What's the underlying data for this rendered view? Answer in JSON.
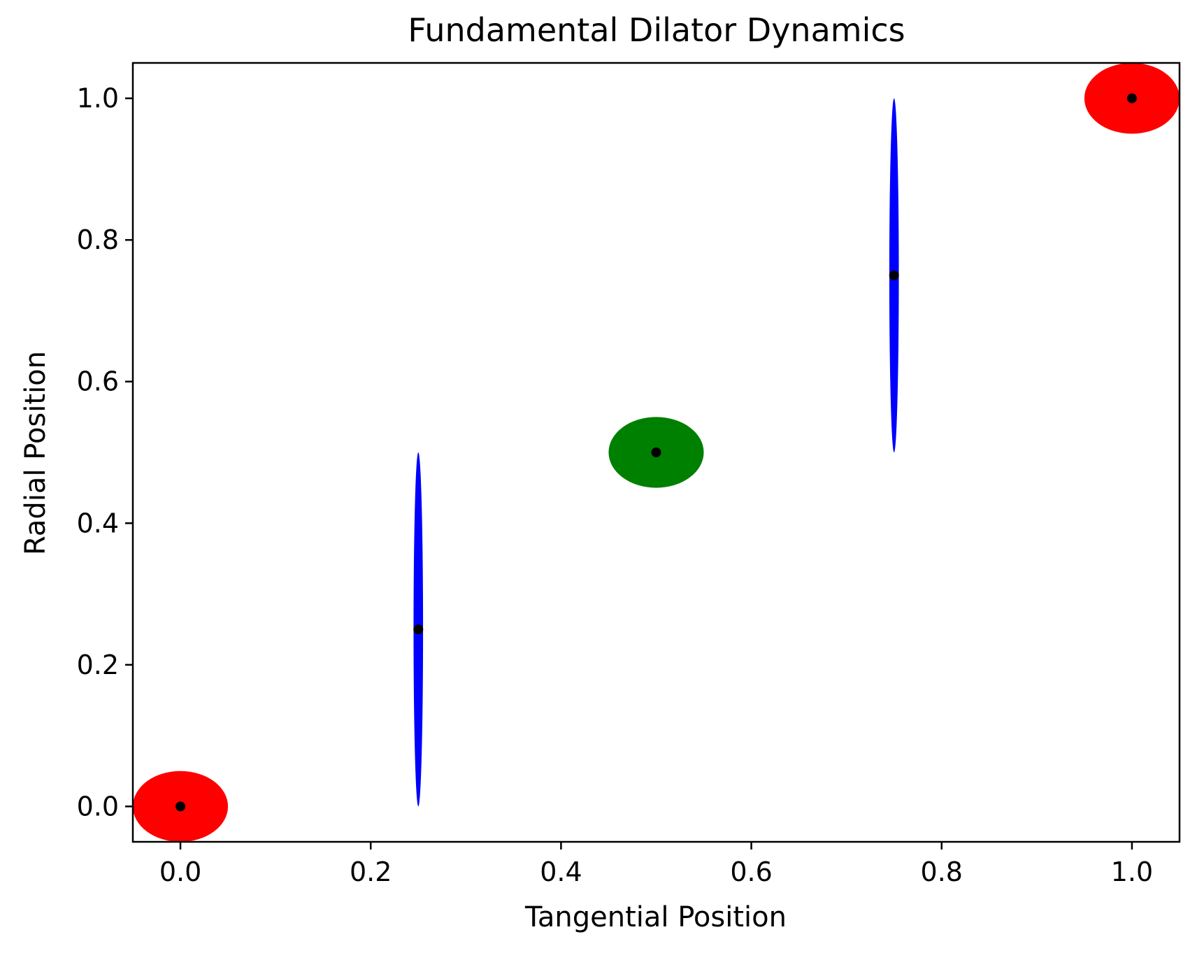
{
  "chart_data": {
    "type": "scatter",
    "title": "Fundamental Dilator Dynamics",
    "xlabel": "Tangential Position",
    "ylabel": "Radial Position",
    "xlim": [
      -0.05,
      1.05
    ],
    "ylim": [
      -0.05,
      1.05
    ],
    "xticks": [
      0.0,
      0.2,
      0.4,
      0.6,
      0.8,
      1.0
    ],
    "yticks": [
      0.0,
      0.2,
      0.4,
      0.6,
      0.8,
      1.0
    ],
    "xtick_labels": [
      "0.0",
      "0.2",
      "0.4",
      "0.6",
      "0.8",
      "1.0"
    ],
    "ytick_labels": [
      "0.0",
      "0.2",
      "0.4",
      "0.6",
      "0.8",
      "1.0"
    ],
    "grid": false,
    "points": [
      {
        "x": 0.0,
        "y": 0.0,
        "marker_color": "#000000"
      },
      {
        "x": 0.25,
        "y": 0.25,
        "marker_color": "#000000"
      },
      {
        "x": 0.5,
        "y": 0.5,
        "marker_color": "#000000"
      },
      {
        "x": 0.75,
        "y": 0.75,
        "marker_color": "#000000"
      },
      {
        "x": 1.0,
        "y": 1.0,
        "marker_color": "#000000"
      }
    ],
    "ellipses": [
      {
        "cx": 0.0,
        "cy": 0.0,
        "width": 0.1,
        "height": 0.1,
        "color": "#ff0000"
      },
      {
        "cx": 0.25,
        "cy": 0.25,
        "width": 0.01,
        "height": 0.5,
        "color": "#0000ff"
      },
      {
        "cx": 0.5,
        "cy": 0.5,
        "width": 0.1,
        "height": 0.1,
        "color": "#008000"
      },
      {
        "cx": 0.75,
        "cy": 0.75,
        "width": 0.01,
        "height": 0.5,
        "color": "#0000ff"
      },
      {
        "cx": 1.0,
        "cy": 1.0,
        "width": 0.1,
        "height": 0.1,
        "color": "#ff0000"
      }
    ]
  }
}
